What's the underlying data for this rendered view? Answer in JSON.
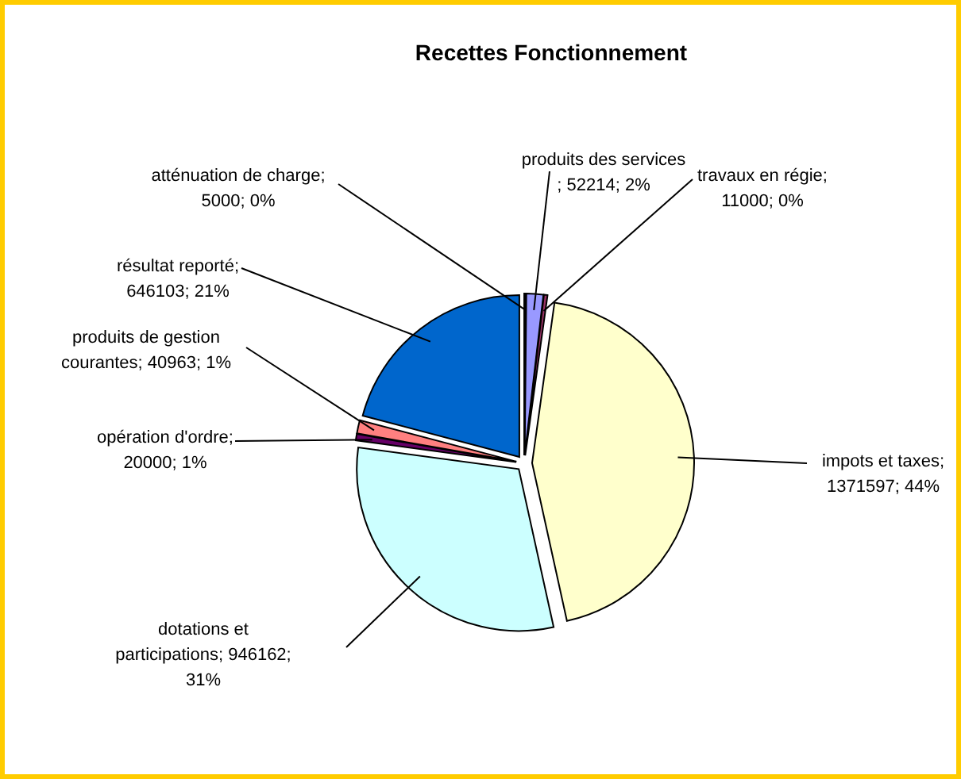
{
  "chart_data": {
    "type": "pie",
    "title": "Recettes Fonctionnement",
    "categories": [
      "atténuation de charge",
      "produits des services",
      "travaux en régie",
      "impots et taxes",
      "dotations et participations",
      "opération d'ordre",
      "produits de gestion courantes",
      "résultat reporté"
    ],
    "values": [
      5000,
      52214,
      11000,
      1371597,
      946162,
      20000,
      40963,
      646103
    ],
    "value_labels": [
      "; 5000; 0%",
      "; 52214; 2%",
      "; 11000; 0%",
      "; 1371597; 44%",
      "; 946162; 31%",
      "; 20000; 1%",
      "; 40963; 1%",
      "; 646103; 21%"
    ],
    "colors": [
      "#000080",
      "#9999ff",
      "#993366",
      "#ffffcc",
      "#ccffff",
      "#660066",
      "#ff8080",
      "#0066cc"
    ]
  }
}
